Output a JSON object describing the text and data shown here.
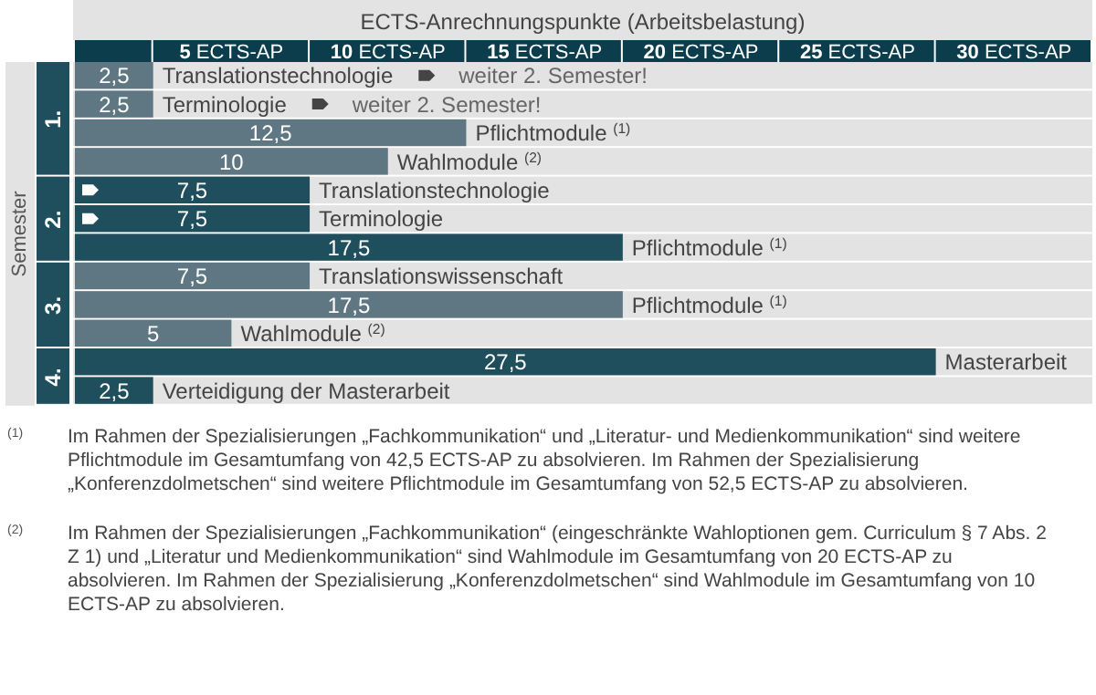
{
  "chart_data": {
    "type": "bar",
    "orientation": "horizontal",
    "title": "ECTS-Anrechnungspunkte (Arbeitsbelastung)",
    "ylabel": "Semester",
    "categories": [
      "Translationstechnologie",
      "Terminologie",
      "Pflichtmodule $^{(1)}$",
      "Wahlmodule $^{(2)}$",
      "Translationstechnologie",
      "Terminologie",
      "Pflichtmodule $^{(1)}$",
      "Translationswissenschaft",
      "Pflichtmodule $^{(1)}$",
      "Wahlmodule $^{(2)}$",
      "Masterarbeit",
      "Verteidigung der Masterarbeit"
    ],
    "values": [
      2.5,
      2.5,
      12.5,
      10,
      7.5,
      7.5,
      17.5,
      7.5,
      17.5,
      5,
      27.5,
      2.5
    ],
    "value_labels": [
      "2,5",
      "2,5",
      "12,5",
      "10",
      "7,5",
      "7,5",
      "17,5",
      "7,5",
      "17,5",
      "5",
      "27,5",
      "2,5"
    ],
    "colors": [
      "#5f7683",
      "#5f7683",
      "#5f7683",
      "#5f7683",
      "#1f4e5c",
      "#1f4e5c",
      "#1f4e5c",
      "#5f7683",
      "#5f7683",
      "#5f7683",
      "#1f4e5c",
      "#1f4e5c"
    ],
    "xlim": [
      0,
      32.5
    ],
    "xticks": [
      {
        "value": 5,
        "label": "5 ECTS-AP"
      },
      {
        "value": 10,
        "label": "10 ECTS-AP"
      },
      {
        "value": 15,
        "label": "15 ECTS-AP"
      },
      {
        "value": 20,
        "label": "20 ECTS-AP"
      },
      {
        "value": 25,
        "label": "25 ECTS-AP"
      },
      {
        "value": 30,
        "label": "30 ECTS-AP"
      }
    ],
    "annotations": [
      "1.",
      "2.",
      "3.",
      "4.",
      "weiter 2. Semester!",
      "weiter 2. Semester!",
      "$^{(1)}$ Im Rahmen der Spezialisierungen „Fachkommunikation“ und „Literatur- und Medienkommunikation“ sind weitere Pflichtmodule im Gesamtumfang von 42,5 ECTS-AP zu absolvieren. Im Rahmen der Spezialisierung „Konferenzdolmetschen“ sind weitere Pflichtmodule im Gesamtumfang von 52,5 ECTS-AP zu absolvieren.",
      "$^{(2)}$ Im Rahmen der Spezialisierungen „Fachkommunikation“ (eingeschränkte Wahloptionen gem. Curriculum § 7 Abs. 2 Z 1) und „Literatur und Medienkommunikation“ sind Wahlmodule im Gesamtumfang von 20 ECTS-AP zu absolvieren. Im Rahmen der Spezialisierung „Konferenzdolmetschen“ sind Wahlmodule im Gesamtumfang von 10 ECTS-AP zu absolvieren."
    ]
  }
}
